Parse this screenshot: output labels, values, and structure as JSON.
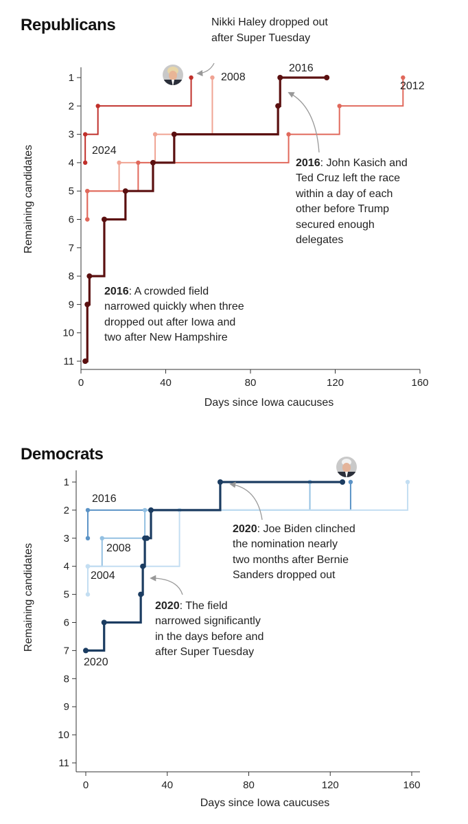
{
  "chart_data": [
    {
      "type": "line",
      "step": "after",
      "title": "Republicans",
      "xlabel": "Days since Iowa caucuses",
      "ylabel": "Remaining candidates",
      "xticks": [
        "0",
        "40",
        "80",
        "120",
        "160"
      ],
      "yticks": [
        "1",
        "2",
        "3",
        "4",
        "5",
        "6",
        "7",
        "8",
        "9",
        "10",
        "11"
      ],
      "xlim": [
        0,
        160
      ],
      "ylim": [
        1,
        11
      ],
      "series": [
        {
          "name": "2024",
          "color": "#c0302b",
          "x": [
            2,
            2,
            8,
            52
          ],
          "y": [
            4,
            3,
            2,
            1
          ]
        },
        {
          "name": "2008",
          "color": "#f0a393",
          "x": [
            3,
            3,
            18,
            35,
            62
          ],
          "y": [
            6,
            5,
            4,
            3,
            1
          ]
        },
        {
          "name": "2012",
          "color": "#e0685b",
          "x": [
            3,
            3,
            27,
            98,
            122,
            152
          ],
          "y": [
            6,
            5,
            4,
            3,
            2,
            1
          ]
        },
        {
          "name": "2016",
          "color": "#5b1010",
          "x": [
            2,
            3,
            4,
            11,
            21,
            34,
            44,
            93,
            94,
            116
          ],
          "y": [
            11,
            9,
            8,
            6,
            5,
            4,
            3,
            2,
            1,
            1
          ]
        }
      ],
      "annotations": [
        {
          "bold": "",
          "lines": [
            "Nikki Haley dropped out",
            "after Super Tuesday"
          ]
        },
        {
          "bold": "2016",
          "lines": [
            ": John Kasich and",
            "Ted Cruz left the race",
            "within a day of each",
            "other before Trump",
            "secured enough",
            "delegates"
          ]
        },
        {
          "bold": "2016",
          "lines": [
            ": A crowded field",
            "narrowed quickly when three",
            "dropped out after Iowa and",
            "two after New Hampshire"
          ]
        }
      ]
    },
    {
      "type": "line",
      "step": "after",
      "title": "Democrats",
      "xlabel": "Days since Iowa caucuses",
      "ylabel": "Remaining candidates",
      "xticks": [
        "0",
        "40",
        "80",
        "120",
        "160"
      ],
      "yticks": [
        "1",
        "2",
        "3",
        "4",
        "5",
        "6",
        "7",
        "8",
        "9",
        "10",
        "11"
      ],
      "xlim": [
        0,
        160
      ],
      "ylim": [
        1,
        11
      ],
      "series": [
        {
          "name": "2016",
          "color": "#5b93c6",
          "x": [
            1,
            1,
            130
          ],
          "y": [
            3,
            2,
            1
          ]
        },
        {
          "name": "2008",
          "color": "#93c0e2",
          "x": [
            1,
            8,
            29,
            110
          ],
          "y": [
            4,
            3,
            2,
            1
          ]
        },
        {
          "name": "2004",
          "color": "#c3def2",
          "x": [
            1,
            1,
            46,
            158
          ],
          "y": [
            5,
            4,
            2,
            1
          ]
        },
        {
          "name": "2020",
          "color": "#1b3c61",
          "x": [
            0,
            9,
            27,
            28,
            29,
            30,
            32,
            66,
            126
          ],
          "y": [
            7,
            6,
            5,
            4,
            3,
            3,
            2,
            1,
            1
          ]
        }
      ],
      "annotations": [
        {
          "bold": "2020",
          "lines": [
            ": Joe Biden clinched",
            "the nomination nearly",
            "two months after Bernie",
            "Sanders dropped out"
          ]
        },
        {
          "bold": "2020",
          "lines": [
            ": The field",
            "narrowed significantly",
            "in the days before and",
            "after Super Tuesday"
          ]
        }
      ]
    }
  ]
}
